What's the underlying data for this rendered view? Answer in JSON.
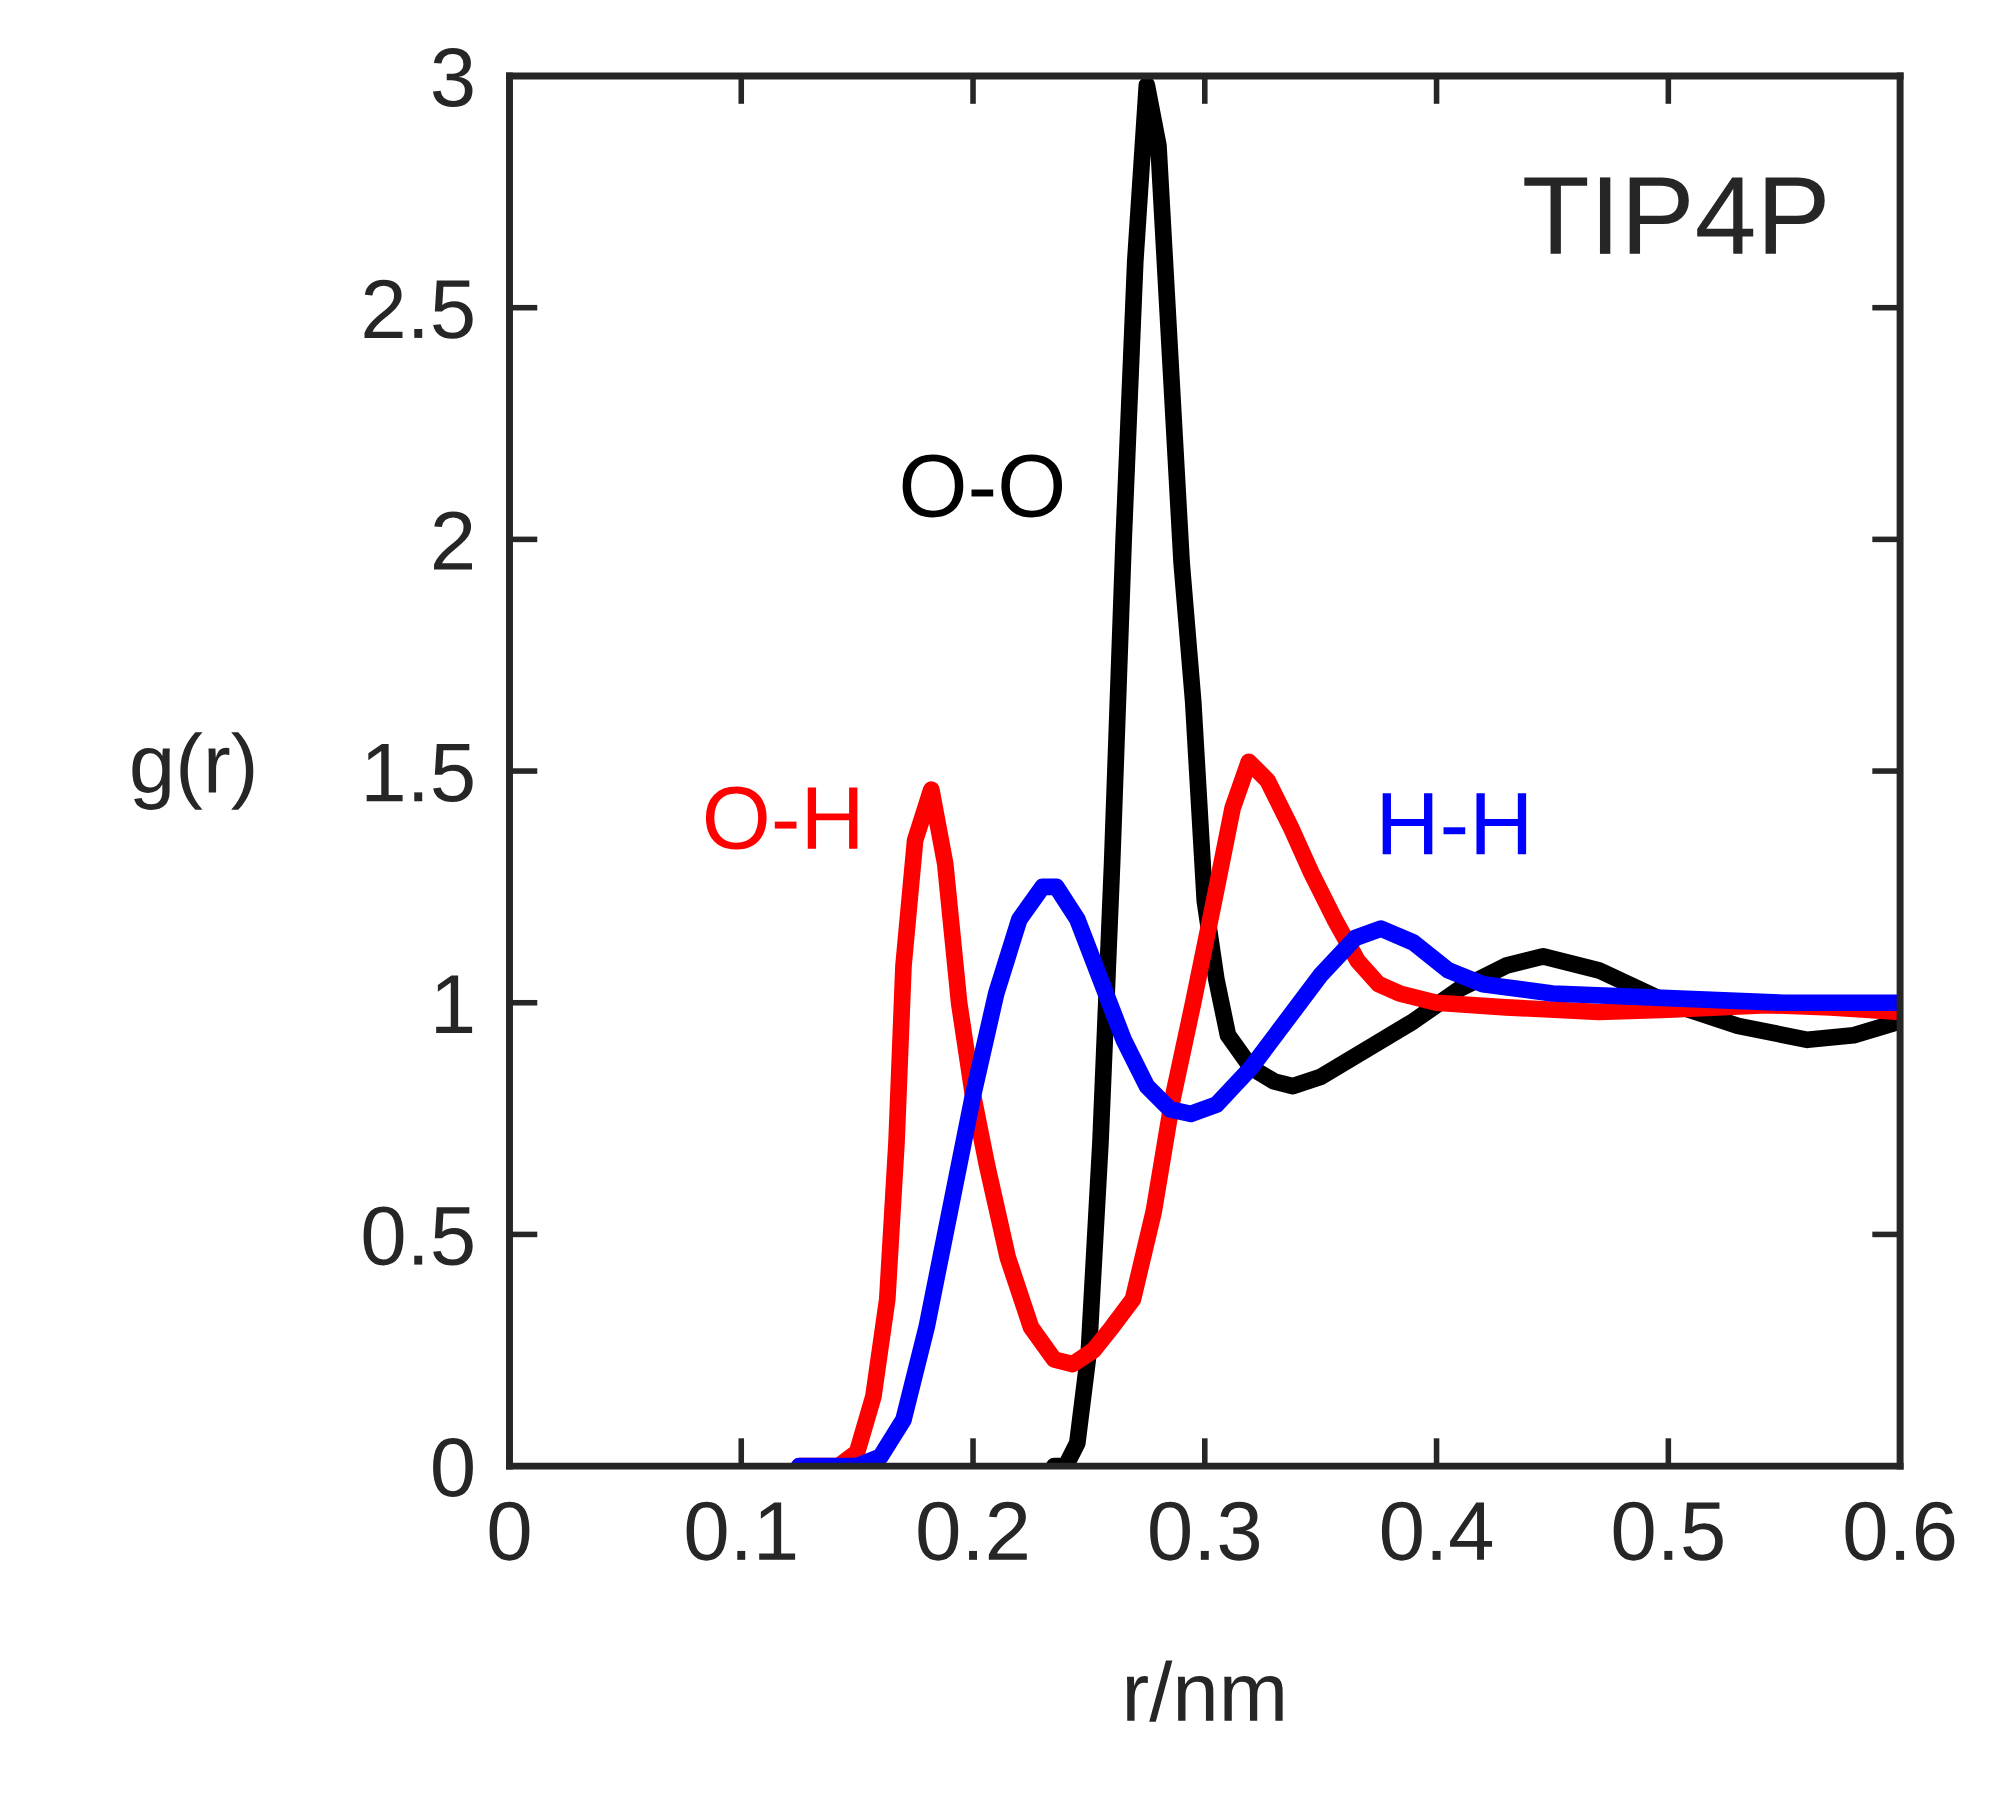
{
  "chart_data": {
    "type": "line",
    "title": "TIP4P",
    "xlabel": "r/nm",
    "ylabel": "g(r)",
    "xlim": [
      0,
      0.6
    ],
    "xticks": [
      0,
      0.1,
      0.2,
      0.3,
      0.4,
      0.5,
      0.6
    ],
    "ylim": [
      0,
      3
    ],
    "yticks": [
      0,
      0.5,
      1,
      1.5,
      2,
      2.5,
      3
    ],
    "grid": false,
    "legend": false,
    "marker": "none",
    "line_style": "solid",
    "series": [
      {
        "name": "O-O",
        "color": "#000000",
        "x": [
          0.235,
          0.24,
          0.245,
          0.25,
          0.255,
          0.26,
          0.265,
          0.27,
          0.275,
          0.28,
          0.285,
          0.29,
          0.295,
          0.3,
          0.305,
          0.31,
          0.32,
          0.33,
          0.338,
          0.35,
          0.37,
          0.39,
          0.41,
          0.43,
          0.446,
          0.47,
          0.5,
          0.53,
          0.56,
          0.58,
          0.6
        ],
        "values": [
          0,
          0,
          0.05,
          0.25,
          0.7,
          1.3,
          2.0,
          2.6,
          2.98,
          2.85,
          2.4,
          1.95,
          1.65,
          1.22,
          1.05,
          0.93,
          0.86,
          0.83,
          0.82,
          0.84,
          0.9,
          0.96,
          1.03,
          1.08,
          1.1,
          1.07,
          1.0,
          0.95,
          0.92,
          0.93,
          0.96
        ]
      },
      {
        "name": "O-H",
        "color": "#ff0000",
        "x": [
          0.125,
          0.142,
          0.15,
          0.157,
          0.163,
          0.167,
          0.17,
          0.175,
          0.182,
          0.188,
          0.194,
          0.2,
          0.206,
          0.215,
          0.225,
          0.235,
          0.243,
          0.252,
          0.26,
          0.269,
          0.278,
          0.286,
          0.295,
          0.304,
          0.312,
          0.319,
          0.327,
          0.337,
          0.346,
          0.356,
          0.366,
          0.375,
          0.384,
          0.4,
          0.43,
          0.47,
          0.5,
          0.542,
          0.57,
          0.6
        ],
        "values": [
          0,
          0,
          0.03,
          0.15,
          0.36,
          0.7,
          1.08,
          1.35,
          1.46,
          1.3,
          1.0,
          0.8,
          0.65,
          0.45,
          0.3,
          0.23,
          0.22,
          0.25,
          0.3,
          0.36,
          0.55,
          0.79,
          1.0,
          1.22,
          1.42,
          1.52,
          1.48,
          1.38,
          1.28,
          1.18,
          1.09,
          1.04,
          1.02,
          1.0,
          0.99,
          0.98,
          0.985,
          0.995,
          0.99,
          0.98
        ]
      },
      {
        "name": "H-H",
        "color": "#0000ff",
        "x": [
          0.125,
          0.15,
          0.16,
          0.17,
          0.18,
          0.19,
          0.2,
          0.21,
          0.22,
          0.23,
          0.236,
          0.245,
          0.255,
          0.265,
          0.275,
          0.285,
          0.294,
          0.305,
          0.32,
          0.335,
          0.35,
          0.365,
          0.376,
          0.39,
          0.405,
          0.42,
          0.45,
          0.5,
          0.55,
          0.6
        ],
        "values": [
          0,
          0,
          0.02,
          0.1,
          0.3,
          0.55,
          0.8,
          1.02,
          1.18,
          1.25,
          1.25,
          1.18,
          1.05,
          0.92,
          0.82,
          0.77,
          0.76,
          0.78,
          0.86,
          0.96,
          1.06,
          1.14,
          1.16,
          1.13,
          1.07,
          1.04,
          1.02,
          1.01,
          1.0,
          1.0
        ]
      }
    ]
  }
}
